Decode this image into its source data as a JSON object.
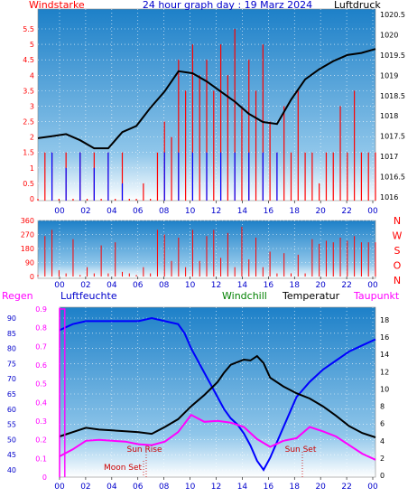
{
  "chart_data": [
    {
      "type": "line",
      "title": "24 hour graph day : 19 Marz 2024",
      "left_label": "Windstarke",
      "right_label": "Luftdruck",
      "x_ticks": [
        "00",
        "02",
        "04",
        "06",
        "08",
        "10",
        "12",
        "14",
        "16",
        "18",
        "20",
        "22",
        "00"
      ],
      "y_left_ticks": [
        "0",
        "0.5",
        "1",
        "1.5",
        "2",
        "2.5",
        "3",
        "3.5",
        "4",
        "4.5",
        "5",
        "5.5"
      ],
      "y_right_ticks": [
        "1016",
        "1016.5",
        "1017",
        "1017.5",
        "1018",
        "1018.5",
        "1019",
        "1019.5",
        "1020",
        "1020.5"
      ],
      "ylim_left": [
        0,
        5.5
      ],
      "ylim_right": [
        1016,
        1020.5
      ],
      "xlim_hours": [
        0,
        24
      ],
      "series": [
        {
          "color": "#ff0000",
          "axis": "left",
          "x": [
            0,
            0.5,
            1,
            1.5,
            2,
            2.5,
            3,
            3.5,
            4,
            4.5,
            5,
            5.5,
            6,
            6.5,
            7,
            7.5,
            8,
            8.5,
            9,
            9.5,
            10,
            10.5,
            11,
            11.5,
            12,
            12.5,
            13,
            13.5,
            14,
            14.5,
            15,
            15.5,
            16,
            16.5,
            17,
            17.5,
            18,
            18.5,
            19,
            19.5,
            20,
            20.5,
            21,
            21.5,
            22,
            22.5,
            23,
            23.5,
            24
          ],
          "y": [
            0,
            1.5,
            1.5,
            0,
            1.5,
            0,
            1.5,
            0,
            1.5,
            0,
            1.5,
            0,
            1.5,
            0,
            0,
            0.5,
            0,
            1.5,
            2.5,
            2,
            4.5,
            3.5,
            5,
            4,
            4.5,
            3.5,
            5,
            4,
            5.5,
            3,
            4.5,
            3.5,
            5,
            2.5,
            1.5,
            3,
            1.5,
            3.5,
            1.5,
            1.5,
            0.5,
            1.5,
            1.5,
            3,
            1.5,
            3.5,
            1.5,
            1.5,
            1.5
          ]
        },
        {
          "color": "#0000ff",
          "axis": "left",
          "x": [
            1,
            2,
            3,
            4,
            5,
            6,
            9,
            10,
            11,
            12,
            13,
            14,
            15,
            16,
            17
          ],
          "y": [
            1.5,
            1,
            1.5,
            1,
            1.5,
            0.5,
            1.5,
            1.5,
            1.5,
            1.5,
            1.5,
            1.5,
            1.5,
            1.5,
            1.5
          ]
        },
        {
          "color": "#000000",
          "axis": "right",
          "x": [
            0,
            1,
            2,
            3,
            4,
            5,
            6,
            7,
            8,
            9,
            10,
            11,
            12,
            13,
            14,
            15,
            16,
            17,
            18,
            19,
            20,
            21,
            22,
            23,
            24
          ],
          "y": [
            1017.45,
            1017.5,
            1017.55,
            1017.4,
            1017.2,
            1017.2,
            1017.6,
            1017.75,
            1018.2,
            1018.6,
            1019.1,
            1019.05,
            1018.85,
            1018.6,
            1018.35,
            1018.05,
            1017.85,
            1017.8,
            1018.4,
            1018.9,
            1019.15,
            1019.35,
            1019.5,
            1019.55,
            1019.65
          ]
        }
      ]
    },
    {
      "type": "scatter",
      "left_ticks": [
        "0",
        "90",
        "180",
        "270",
        "360"
      ],
      "right_letters": [
        "N",
        "W",
        "S",
        "O",
        "N"
      ],
      "x_ticks": [
        "00",
        "02",
        "04",
        "06",
        "08",
        "10",
        "12",
        "14",
        "16",
        "18",
        "20",
        "22",
        "00"
      ],
      "ylim": [
        0,
        360
      ],
      "xlim_hours": [
        0,
        24
      ],
      "series": [
        {
          "color": "#ff0000",
          "x": [
            0,
            0.5,
            1,
            1.5,
            2,
            2.5,
            3,
            3.5,
            4,
            4.5,
            5,
            5.5,
            6,
            6.5,
            7,
            7.5,
            8,
            8.5,
            9,
            9.5,
            10,
            10.5,
            11,
            11.5,
            12,
            12.5,
            13,
            13.5,
            14,
            14.5,
            15,
            15.5,
            16,
            16.5,
            17,
            17.5,
            18,
            18.5,
            19,
            19.5,
            20,
            20.5,
            21,
            21.5,
            22,
            22.5,
            23,
            23.5,
            24
          ],
          "y": [
            10,
            260,
            300,
            40,
            20,
            240,
            10,
            60,
            20,
            200,
            20,
            220,
            30,
            20,
            10,
            60,
            20,
            300,
            270,
            100,
            250,
            60,
            300,
            100,
            260,
            300,
            120,
            280,
            60,
            320,
            110,
            250,
            60,
            160,
            20,
            150,
            20,
            140,
            20,
            240,
            210,
            230,
            220,
            250,
            230,
            260,
            220,
            220,
            220
          ]
        }
      ]
    },
    {
      "type": "line",
      "header_labels": [
        "Regen",
        "Luftfeuchte",
        "Windchill",
        "Temperatur",
        "Taupunkt"
      ],
      "y_left_outer_ticks": [
        "40",
        "45",
        "50",
        "55",
        "60",
        "65",
        "70",
        "75",
        "80",
        "85",
        "90"
      ],
      "y_left_inner_ticks": [
        "0",
        "0.1",
        "0.2",
        "0.3",
        "0.4",
        "0.5",
        "0.6",
        "0.7",
        "0.8",
        "0.9"
      ],
      "y_right_ticks": [
        "0",
        "2",
        "4",
        "6",
        "8",
        "10",
        "12",
        "14",
        "16",
        "18"
      ],
      "x_ticks": [
        "00",
        "02",
        "04",
        "06",
        "08",
        "10",
        "12",
        "14",
        "16",
        "18",
        "20",
        "22",
        "00"
      ],
      "annotations": [
        "Sun Rise",
        "Sun Set",
        "Moon Set"
      ],
      "ylim_humidity": [
        40,
        90
      ],
      "ylim_rain": [
        0,
        0.9
      ],
      "ylim_temperature": [
        0,
        18
      ],
      "xlim_hours": [
        0,
        24
      ],
      "series": [
        {
          "color": "#0000ff",
          "axis": "humidity",
          "x": [
            0,
            1,
            2,
            3,
            4,
            5,
            6,
            7,
            8,
            9,
            9.5,
            10,
            10.5,
            11,
            11.5,
            12,
            12.5,
            13,
            13.5,
            14,
            14.5,
            15,
            15.5,
            16,
            16.5,
            17,
            17.5,
            18,
            19,
            20,
            21,
            22,
            23,
            24
          ],
          "y": [
            86,
            88,
            89,
            89,
            89,
            89,
            89,
            90,
            89,
            88,
            85,
            80,
            76,
            72,
            68,
            64,
            60,
            57,
            55,
            52,
            48,
            43,
            40,
            44,
            49,
            54,
            59,
            64,
            69,
            73,
            76,
            79,
            81,
            83
          ]
        },
        {
          "color": "#000000",
          "axis": "temperature",
          "x": [
            0,
            1,
            2,
            3,
            4,
            5,
            6,
            7,
            8,
            9,
            10,
            11,
            12,
            12.5,
            13,
            13.5,
            14,
            14.5,
            15,
            15.5,
            16,
            17,
            18,
            19,
            20,
            21,
            22,
            23,
            24
          ],
          "y": [
            4.5,
            5,
            5.5,
            5.3,
            5.2,
            5.1,
            5,
            4.8,
            5.6,
            6.5,
            8,
            9.3,
            10.8,
            11.9,
            12.8,
            13.1,
            13.4,
            13.3,
            13.8,
            13,
            11.3,
            10.3,
            9.5,
            8.9,
            8.0,
            6.9,
            5.7,
            4.9,
            4.4
          ]
        },
        {
          "color": "#ff00ff",
          "axis": "temperature",
          "x": [
            0,
            1,
            2,
            3,
            4,
            5,
            6,
            7,
            8,
            9,
            10,
            11,
            12,
            13,
            14,
            15,
            16,
            17,
            18,
            19,
            20,
            21,
            22,
            23,
            24
          ],
          "y": [
            2.2,
            3,
            4,
            4.1,
            4,
            3.9,
            3.6,
            3.5,
            3.9,
            5,
            7,
            6.2,
            6.3,
            6.1,
            5.6,
            4.2,
            3.3,
            4,
            4.3,
            5.6,
            5.1,
            4.5,
            3.5,
            2.5,
            1.8
          ]
        },
        {
          "color": "#ff00ff",
          "axis": "rain",
          "x": [
            0,
            0,
            0.4,
            0.4
          ],
          "y": [
            0,
            0.9,
            0.9,
            0
          ]
        }
      ]
    }
  ]
}
